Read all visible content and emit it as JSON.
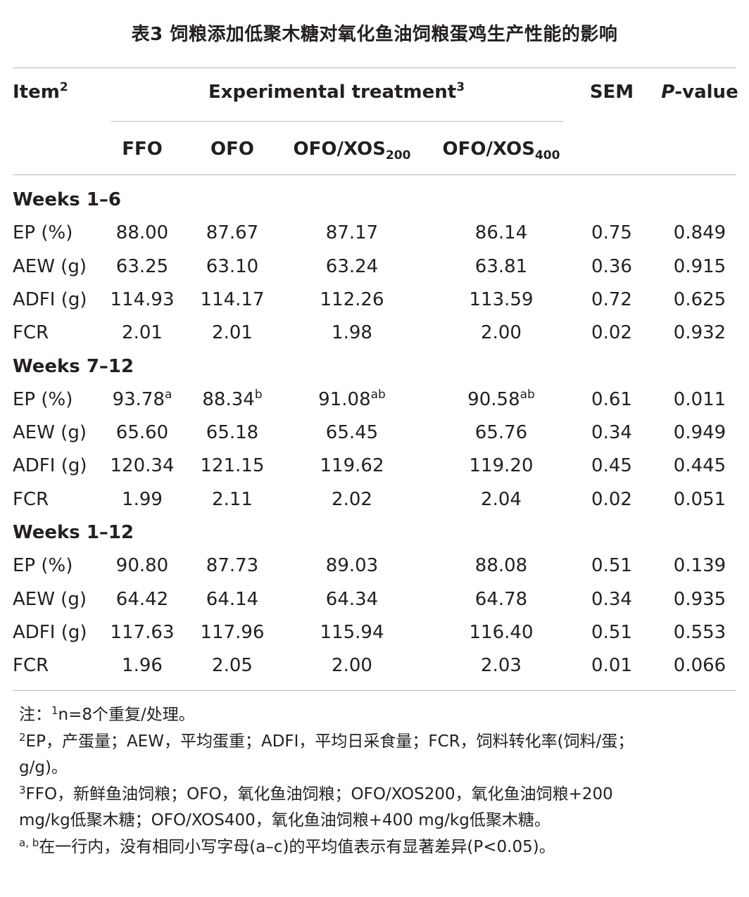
{
  "title": "表3 饲粮添加低聚木糖对氧化鱼油饲粮蛋鸡生产性能的影响",
  "header": {
    "item": "Item",
    "item_sup": "2",
    "treatment": "Experimental treatment",
    "treatment_sup": "3",
    "sem": "SEM",
    "pvalue_italic": "P",
    "pvalue_rest": "-value",
    "groups": [
      {
        "base": "FFO",
        "sub": ""
      },
      {
        "base": "OFO",
        "sub": ""
      },
      {
        "base": "OFO/XOS",
        "sub": "200"
      },
      {
        "base": "OFO/XOS",
        "sub": "400"
      }
    ]
  },
  "sections": [
    {
      "label": "Weeks 1–6",
      "rows": [
        {
          "item": "EP (%)",
          "values": [
            [
              "88.00",
              ""
            ],
            [
              "87.67",
              ""
            ],
            [
              "87.17",
              ""
            ],
            [
              "86.14",
              ""
            ]
          ],
          "sem": "0.75",
          "p": "0.849"
        },
        {
          "item": "AEW (g)",
          "values": [
            [
              "63.25",
              ""
            ],
            [
              "63.10",
              ""
            ],
            [
              "63.24",
              ""
            ],
            [
              "63.81",
              ""
            ]
          ],
          "sem": "0.36",
          "p": "0.915"
        },
        {
          "item": "ADFI (g)",
          "values": [
            [
              "114.93",
              ""
            ],
            [
              "114.17",
              ""
            ],
            [
              "112.26",
              ""
            ],
            [
              "113.59",
              ""
            ]
          ],
          "sem": "0.72",
          "p": "0.625"
        },
        {
          "item": "FCR",
          "values": [
            [
              "2.01",
              ""
            ],
            [
              "2.01",
              ""
            ],
            [
              "1.98",
              ""
            ],
            [
              "2.00",
              ""
            ]
          ],
          "sem": "0.02",
          "p": "0.932"
        }
      ]
    },
    {
      "label": "Weeks 7–12",
      "rows": [
        {
          "item": "EP (%)",
          "values": [
            [
              "93.78",
              "a"
            ],
            [
              "88.34",
              "b"
            ],
            [
              "91.08",
              "ab"
            ],
            [
              "90.58",
              "ab"
            ]
          ],
          "sem": "0.61",
          "p": "0.011"
        },
        {
          "item": "AEW (g)",
          "values": [
            [
              "65.60",
              ""
            ],
            [
              "65.18",
              ""
            ],
            [
              "65.45",
              ""
            ],
            [
              "65.76",
              ""
            ]
          ],
          "sem": "0.34",
          "p": "0.949"
        },
        {
          "item": "ADFI (g)",
          "values": [
            [
              "120.34",
              ""
            ],
            [
              "121.15",
              ""
            ],
            [
              "119.62",
              ""
            ],
            [
              "119.20",
              ""
            ]
          ],
          "sem": "0.45",
          "p": "0.445"
        },
        {
          "item": "FCR",
          "values": [
            [
              "1.99",
              ""
            ],
            [
              "2.11",
              ""
            ],
            [
              "2.02",
              ""
            ],
            [
              "2.04",
              ""
            ]
          ],
          "sem": "0.02",
          "p": "0.051"
        }
      ]
    },
    {
      "label": "Weeks 1–12",
      "rows": [
        {
          "item": "EP (%)",
          "values": [
            [
              "90.80",
              ""
            ],
            [
              "87.73",
              ""
            ],
            [
              "89.03",
              ""
            ],
            [
              "88.08",
              ""
            ]
          ],
          "sem": "0.51",
          "p": "0.139"
        },
        {
          "item": "AEW (g)",
          "values": [
            [
              "64.42",
              ""
            ],
            [
              "64.14",
              ""
            ],
            [
              "64.34",
              ""
            ],
            [
              "64.78",
              ""
            ]
          ],
          "sem": "0.34",
          "p": "0.935"
        },
        {
          "item": "ADFI (g)",
          "values": [
            [
              "117.63",
              ""
            ],
            [
              "117.96",
              ""
            ],
            [
              "115.94",
              ""
            ],
            [
              "116.40",
              ""
            ]
          ],
          "sem": "0.51",
          "p": "0.553"
        },
        {
          "item": "FCR",
          "values": [
            [
              "1.96",
              ""
            ],
            [
              "2.05",
              ""
            ],
            [
              "2.00",
              ""
            ],
            [
              "2.03",
              ""
            ]
          ],
          "sem": "0.01",
          "p": "0.066"
        }
      ]
    }
  ],
  "notes": {
    "n1_prefix": "注：",
    "n1_sup": "1",
    "n1_text": "n=8个重复/处理。",
    "n2_sup": "2",
    "n2_line1": "EP，产蛋量；AEW，平均蛋重；ADFI，平均日采食量；FCR，饲料转化率(饲料/蛋；",
    "n2_line2": "g/g)。",
    "n3_sup": "3",
    "n3_line1": "FFO，新鲜鱼油饲粮；OFO，氧化鱼油饲粮；OFO/XOS200，氧化鱼油饲粮+200",
    "n3_line2": "mg/kg低聚木糖；OFO/XOS400，氧化鱼油饲粮+400 mg/kg低聚木糖。",
    "n4_sup": "a, b",
    "n4_text": "在一行内，没有相同小写字母(a–c)的平均值表示有显著差异(P<0.05)。"
  }
}
